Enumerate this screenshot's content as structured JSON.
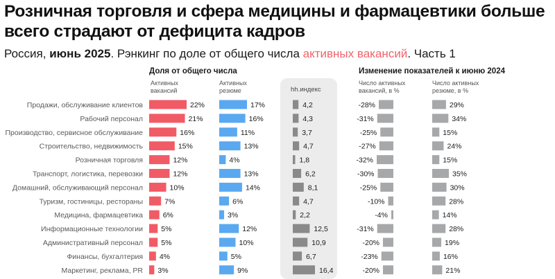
{
  "title": "Розничная торговля и сфера медицины и фармацевтики больше всего страдают от дефицита кадров",
  "subtitle": {
    "region": "Россия, ",
    "period": "июнь 2025",
    "text_before": ". Рэнкинг по доле от общего числа ",
    "accent": "активных вакансий",
    "text_after": ". Часть 1"
  },
  "groups": {
    "share": "Доля от общего числа",
    "change": "Изменение показателей к июню 2024"
  },
  "columns": {
    "vacancies": "Активных вакансий",
    "resumes": "Активных резюме",
    "hh_index": "hh.индекс",
    "vac_change": "Число активных вакансий, в %",
    "res_change": "Число активных резюме, в %"
  },
  "colors": {
    "vacancies": "#f15b66",
    "resumes": "#5aa9f0",
    "hh_index": "#8a8a8a",
    "changes": "#a6a8aa",
    "accent": "#f0636c"
  },
  "chart_data": {
    "type": "bar",
    "categories": [
      "Продажи, обслуживание клиентов",
      "Рабочий персонал",
      "Производство, сервисное обслуживание",
      "Строительство, недвижимость",
      "Розничная торговля",
      "Транспорт, логистика, перевозки",
      "Домашний, обслуживающий персонал",
      "Туризм, гостиницы, рестораны",
      "Медицина, фармацевтика",
      "Информационные технологии",
      "Административный персонал",
      "Финансы, бухгалтерия",
      "Маркетинг, реклама, PR"
    ],
    "series": [
      {
        "key": "vacancies",
        "values": [
          22,
          21,
          16,
          15,
          12,
          12,
          10,
          7,
          6,
          5,
          5,
          4,
          3
        ],
        "labels": [
          "22%",
          "21%",
          "16%",
          "15%",
          "12%",
          "12%",
          "10%",
          "7%",
          "6%",
          "5%",
          "5%",
          "4%",
          "3%"
        ]
      },
      {
        "key": "resumes",
        "values": [
          17,
          16,
          11,
          13,
          4,
          13,
          14,
          6,
          3,
          12,
          10,
          5,
          9
        ],
        "labels": [
          "17%",
          "16%",
          "11%",
          "13%",
          "4%",
          "13%",
          "14%",
          "6%",
          "3%",
          "12%",
          "10%",
          "5%",
          "9%"
        ]
      },
      {
        "key": "hh_index",
        "values": [
          4.2,
          4.3,
          3.7,
          4.7,
          1.8,
          6.2,
          8.1,
          4.7,
          2.2,
          12.5,
          10.9,
          6.7,
          16.4
        ],
        "labels": [
          "4,2",
          "4,3",
          "3,7",
          "4,7",
          "1,8",
          "6,2",
          "8,1",
          "4,7",
          "2,2",
          "12,5",
          "10,9",
          "6,7",
          "16,4"
        ]
      },
      {
        "key": "vac_change",
        "values": [
          -28,
          -31,
          -25,
          -27,
          -32,
          -30,
          -25,
          -10,
          -4,
          -31,
          -20,
          -23,
          -20
        ],
        "labels": [
          "-28%",
          "-31%",
          "-25%",
          "-27%",
          "-32%",
          "-30%",
          "-25%",
          "-10%",
          "-4%",
          "-31%",
          "-20%",
          "-23%",
          "-20%"
        ]
      },
      {
        "key": "res_change",
        "values": [
          29,
          34,
          15,
          24,
          15,
          35,
          30,
          28,
          14,
          28,
          19,
          16,
          21
        ],
        "labels": [
          "29%",
          "34%",
          "15%",
          "24%",
          "15%",
          "35%",
          "30%",
          "28%",
          "14%",
          "28%",
          "19%",
          "16%",
          "21%"
        ]
      }
    ]
  }
}
